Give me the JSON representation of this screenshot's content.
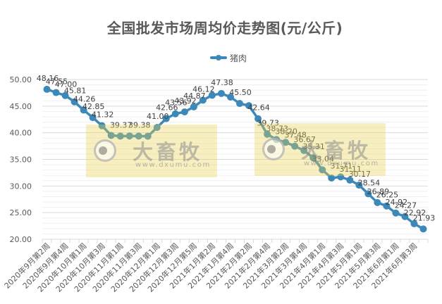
{
  "title": "全国批发市场周均价走势图(元/公斤)",
  "legend": {
    "label": "猪肉",
    "color": "#3c88b8"
  },
  "watermarks": [
    {
      "brand": "大畜牧",
      "url": "www.dxumu.com"
    },
    {
      "brand": "大畜牧",
      "url": "www.dxumu.com"
    }
  ],
  "colors": {
    "series": "#3c88b8",
    "axis_text": "#595959",
    "data_label": "#404040",
    "major_grid": "#d9d9d9",
    "minor_grid": "#efefef"
  },
  "chart_data": {
    "type": "line",
    "title": "全国批发市场周均价走势图(元/公斤)",
    "xlabel": "",
    "ylabel": "",
    "ylim": [
      20,
      50
    ],
    "yticks": [
      "20.00",
      "25.00",
      "30.00",
      "35.00",
      "40.00",
      "45.00",
      "50.00"
    ],
    "y_major_step": 5,
    "y_minor_step": 1,
    "grid": true,
    "legend_position": "top",
    "categories": [
      "2020年9月第2周",
      "",
      "2020年9月第4周",
      "",
      "2020年10月第1周",
      "",
      "2020年10月第3周",
      "",
      "2020年11月第1周",
      "",
      "2020年11月第3周",
      "",
      "2020年12月第1周",
      "",
      "2020年12月第3周",
      "",
      "2020年12月第5周",
      "",
      "2021年1月第2周",
      "",
      "2021年1月第4周",
      "",
      "2021年2月第2周",
      "",
      "2021年2月第4周",
      "",
      "2021年3月第2周",
      "",
      "2021年3月第4周",
      "",
      "2021年4月第1周",
      "",
      "2021年4月第3周",
      "",
      "2021年5月第1周",
      "",
      "2021年5月第3周",
      "",
      "2021年6月第1周",
      "",
      "2021年6月第3周",
      ""
    ],
    "series": [
      {
        "name": "猪肉",
        "values": [
          48.16,
          47.55,
          47.0,
          45.81,
          44.26,
          42.85,
          41.32,
          39.5,
          39.37,
          39.4,
          39.38,
          39.35,
          41.0,
          42.66,
          43.56,
          43.92,
          44.87,
          46.12,
          47.05,
          47.38,
          46.7,
          45.5,
          45.1,
          42.64,
          39.73,
          38.73,
          38.2,
          37.48,
          36.67,
          35.31,
          33.04,
          31.5,
          31.71,
          31.11,
          30.17,
          28.54,
          26.89,
          26.25,
          24.92,
          24.27,
          22.92,
          21.93
        ],
        "data_labels": [
          "48.16",
          "47.55",
          "47.00",
          "45.81",
          "44.26",
          "42.85",
          "41.32",
          null,
          "39.37",
          null,
          "39.38",
          null,
          "41.00",
          "42.66",
          "43.56",
          "43.92",
          "44.87",
          "46.12",
          null,
          "47.38",
          null,
          "45.50",
          null,
          "42.64",
          "39.73",
          "38.73",
          "38.20",
          "37.48",
          "36.67",
          "35.31",
          "33.04",
          null,
          "31.71",
          "31.11",
          "30.17",
          "28.54",
          "26.89",
          "26.25",
          "24.92",
          "24.27",
          "22.92",
          "21.93"
        ]
      }
    ]
  }
}
